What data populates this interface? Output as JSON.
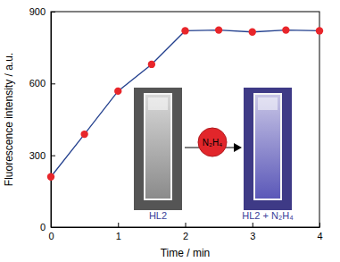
{
  "chart_data": {
    "type": "line",
    "x_label": "Time / min",
    "y_label": "Fluorescence intensity / a.u.",
    "x": [
      0,
      0.5,
      1,
      1.5,
      2,
      2.5,
      3,
      3.5,
      4
    ],
    "series": [
      {
        "color": "#23408e",
        "marker": "circle",
        "line_style": "solid",
        "values": [
          210,
          388,
          568,
          680,
          820,
          823,
          815,
          823,
          820
        ]
      }
    ],
    "xlim": [
      0,
      4
    ],
    "xticks": [
      0,
      1,
      2,
      3,
      4
    ],
    "ylim": [
      0,
      900
    ],
    "yticks": [
      0,
      300,
      600,
      900
    ],
    "grid": false,
    "annotations": [
      "HL2",
      "N₂H₄",
      "HL2 + N₂H₄"
    ]
  }
}
